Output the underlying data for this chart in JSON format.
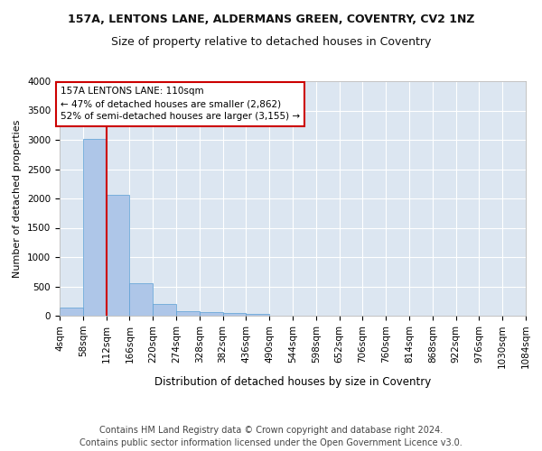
{
  "title1": "157A, LENTONS LANE, ALDERMANS GREEN, COVENTRY, CV2 1NZ",
  "title2": "Size of property relative to detached houses in Coventry",
  "xlabel": "Distribution of detached houses by size in Coventry",
  "ylabel": "Number of detached properties",
  "footer1": "Contains HM Land Registry data © Crown copyright and database right 2024.",
  "footer2": "Contains public sector information licensed under the Open Government Licence v3.0.",
  "annotation_line1": "157A LENTONS LANE: 110sqm",
  "annotation_line2": "← 47% of detached houses are smaller (2,862)",
  "annotation_line3": "52% of semi-detached houses are larger (3,155) →",
  "bar_values": [
    140,
    3020,
    2060,
    550,
    200,
    80,
    55,
    40,
    30,
    5,
    0,
    0,
    0,
    0,
    0,
    0,
    0,
    0,
    0,
    0
  ],
  "bin_labels": [
    "4sqm",
    "58sqm",
    "112sqm",
    "166sqm",
    "220sqm",
    "274sqm",
    "328sqm",
    "382sqm",
    "436sqm",
    "490sqm",
    "544sqm",
    "598sqm",
    "652sqm",
    "706sqm",
    "760sqm",
    "814sqm",
    "868sqm",
    "922sqm",
    "976sqm",
    "1030sqm",
    "1084sqm"
  ],
  "bar_color": "#aec6e8",
  "bar_edge_color": "#5a9fd4",
  "line_color": "#cc0000",
  "line_x_index": 2,
  "ylim": [
    0,
    4000
  ],
  "yticks": [
    0,
    500,
    1000,
    1500,
    2000,
    2500,
    3000,
    3500,
    4000
  ],
  "bg_color": "#dce6f1",
  "fig_bg_color": "#ffffff",
  "grid_color": "#ffffff",
  "annotation_box_color": "#ffffff",
  "annotation_box_edge": "#cc0000",
  "title1_fontsize": 9,
  "title2_fontsize": 9,
  "xlabel_fontsize": 8.5,
  "ylabel_fontsize": 8,
  "footer_fontsize": 7,
  "annotation_fontsize": 7.5,
  "tick_fontsize": 7.5
}
